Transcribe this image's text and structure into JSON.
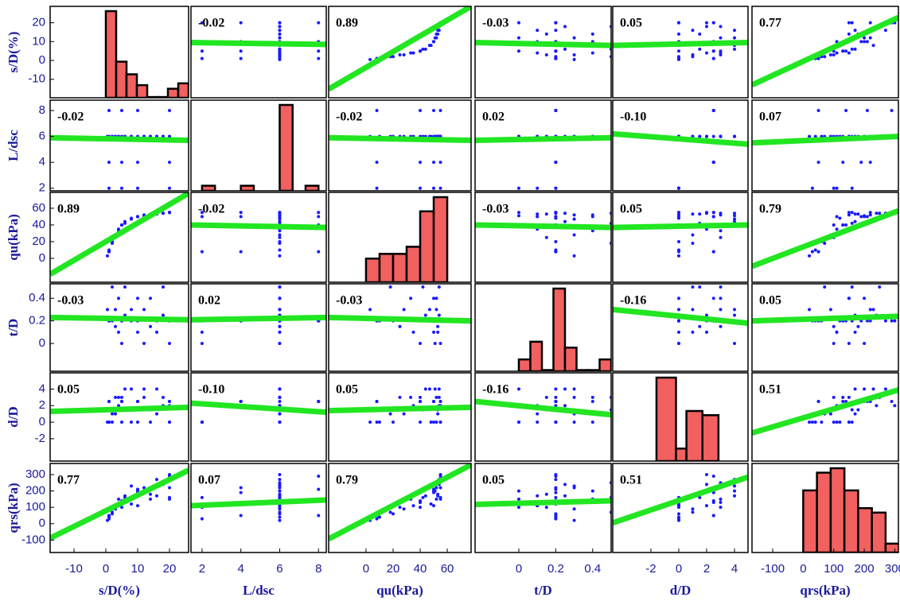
{
  "chart_data": {
    "type": "scatter_matrix",
    "point_color": "#1a1aff",
    "fit_color": "#22e622",
    "hist_color": "#f26060",
    "variables": [
      {
        "name": "s/D(%)",
        "xlim": [
          -17.5,
          26
        ],
        "ylim": [
          -19.8,
          28.7
        ],
        "xticks": [
          -10,
          0,
          10,
          20
        ],
        "yticks": [
          -10,
          0,
          10,
          20
        ],
        "bins": [
          0,
          3.25,
          6.5,
          9.75,
          13,
          16.25,
          19.5,
          22.75,
          26
        ],
        "counts": [
          24,
          10,
          6.5,
          3.5,
          0.2,
          0.2,
          2.5,
          4
        ]
      },
      {
        "name": "L/dsc",
        "xlim": [
          1.43,
          8.4
        ],
        "ylim": [
          1.8,
          8.8
        ],
        "xticks": [
          2,
          4,
          6,
          8
        ],
        "yticks": [
          2,
          4,
          6,
          8
        ],
        "bins": [
          2,
          2.667,
          3.333,
          4,
          4.667,
          5.333,
          6,
          6.667,
          7.333,
          8
        ],
        "counts": [
          2,
          0,
          0,
          2,
          0,
          0,
          34,
          0,
          2
        ]
      },
      {
        "name": "qu(kPa)",
        "xlim": [
          -27.6,
          77.6
        ],
        "ylim": [
          -28.6,
          79
        ],
        "xticks": [
          0,
          20,
          40,
          60
        ],
        "yticks": [
          0,
          20,
          40,
          60
        ],
        "bins": [
          0,
          10,
          20,
          30,
          40,
          50,
          60
        ],
        "counts": [
          5,
          6,
          6,
          7.5,
          15,
          18
        ]
      },
      {
        "name": "t/D",
        "xlim": [
          -0.237,
          0.5
        ],
        "ylim": [
          -0.246,
          0.528
        ],
        "xticks": [
          0,
          0.2,
          0.4
        ],
        "yticks": [
          0,
          0.2,
          0.4
        ],
        "bins": [
          0,
          0.0625,
          0.125,
          0.1875,
          0.25,
          0.3125,
          0.375,
          0.4375,
          0.5
        ],
        "counts": [
          2,
          5,
          0.2,
          14,
          4,
          0.2,
          0.2,
          2
        ]
      },
      {
        "name": "d/D",
        "xlim": [
          -4.74,
          4.97
        ],
        "ylim": [
          -4.7,
          5.96
        ],
        "xticks": [
          -2,
          0,
          2,
          4
        ],
        "yticks": [
          -2,
          0,
          2,
          4
        ],
        "bins": [
          -1.6,
          -0.2,
          0.55,
          1.7,
          2.85
        ],
        "counts": [
          20,
          3,
          12,
          11
        ]
      },
      {
        "name": "qrs(kPa)",
        "xlim": [
          -168,
          312
        ],
        "ylim": [
          -176,
          368
        ],
        "xticks": [
          -100,
          0,
          100,
          200,
          300
        ],
        "yticks": [
          -100,
          0,
          100,
          200,
          300
        ],
        "bins": [
          0,
          45,
          90,
          135,
          180,
          225,
          270,
          315
        ],
        "counts": [
          7,
          9,
          9.5,
          7,
          5,
          4.5,
          1
        ]
      }
    ],
    "samples": [
      [
        1,
        6,
        10,
        0.2,
        0,
        40
      ],
      [
        2,
        6,
        20,
        0.2,
        0,
        60
      ],
      [
        3,
        6,
        28,
        0.3,
        1,
        90
      ],
      [
        4,
        6,
        35,
        0.1,
        2,
        110
      ],
      [
        5,
        6,
        40,
        0.2,
        3,
        130
      ],
      [
        6,
        6,
        44,
        0.25,
        4,
        170
      ],
      [
        8,
        6,
        48,
        0.2,
        0,
        120
      ],
      [
        10,
        6,
        50,
        0.4,
        2.5,
        200
      ],
      [
        12,
        6,
        52,
        0.3,
        3,
        220
      ],
      [
        14,
        6,
        53,
        0.15,
        1.5,
        180
      ],
      [
        16,
        6,
        54,
        0.2,
        4,
        270
      ],
      [
        18,
        6,
        54,
        0.5,
        3,
        250
      ],
      [
        20,
        6,
        55,
        0.2,
        2,
        300
      ],
      [
        20,
        6,
        55,
        0,
        0,
        150
      ],
      [
        1,
        8,
        8,
        0.2,
        2.5,
        50
      ],
      [
        5,
        8,
        40,
        0.2,
        2.5,
        140
      ],
      [
        10,
        8,
        50,
        0.2,
        2.5,
        210
      ],
      [
        20,
        8,
        55,
        0.2,
        2.5,
        290
      ],
      [
        1,
        2,
        8,
        0.2,
        0,
        30
      ],
      [
        5,
        2,
        40,
        0,
        0,
        100
      ],
      [
        10,
        2,
        50,
        0.1,
        0,
        110
      ],
      [
        20,
        2,
        55,
        0.2,
        0,
        160
      ],
      [
        1,
        4,
        8,
        0.2,
        2.5,
        50
      ],
      [
        5,
        4,
        40,
        0.2,
        2.5,
        130
      ],
      [
        10,
        4,
        50,
        0.2,
        2.5,
        190
      ],
      [
        20,
        4,
        55,
        0.2,
        2.5,
        220
      ],
      [
        2,
        6,
        18,
        0.5,
        1,
        70
      ],
      [
        6,
        6,
        42,
        0.5,
        1.5,
        160
      ],
      [
        12,
        6,
        51,
        0,
        4,
        200
      ],
      [
        16,
        6,
        53,
        0.1,
        1,
        170
      ],
      [
        3,
        6,
        25,
        0.15,
        3,
        100
      ],
      [
        8,
        6,
        47,
        0.3,
        4,
        230
      ],
      [
        14,
        6,
        52,
        0.4,
        0,
        150
      ],
      [
        18,
        6,
        54,
        0.25,
        2,
        240
      ],
      [
        0.5,
        6,
        3,
        0.3,
        0,
        20
      ],
      [
        4,
        6,
        33,
        0.4,
        3,
        150
      ]
    ],
    "correlations": [
      [
        null,
        -0.02,
        0.89,
        -0.03,
        0.05,
        0.77
      ],
      [
        -0.02,
        null,
        -0.02,
        0.02,
        -0.1,
        0.07
      ],
      [
        0.89,
        -0.02,
        null,
        -0.03,
        0.05,
        0.79
      ],
      [
        -0.03,
        0.02,
        -0.03,
        null,
        -0.16,
        0.05
      ],
      [
        0.05,
        -0.1,
        0.05,
        -0.16,
        null,
        0.51
      ],
      [
        0.77,
        0.07,
        0.79,
        0.05,
        0.51,
        null
      ]
    ],
    "correlation_labels": [
      [
        null,
        "-0.02",
        "0.89",
        "-0.03",
        "0.05",
        "0.77"
      ],
      [
        "-0.02",
        null,
        "-0.02",
        "0.02",
        "-0.10",
        "0.07"
      ],
      [
        "0.89",
        "-0.02",
        null,
        "-0.03",
        "0.05",
        "0.79"
      ],
      [
        "-0.03",
        "0.02",
        "-0.03",
        null,
        "-0.16",
        "0.05"
      ],
      [
        "0.05",
        "-0.10",
        "0.05",
        "-0.16",
        null,
        "0.51"
      ],
      [
        "0.77",
        "0.07",
        "0.79",
        "0.05",
        "0.51",
        null
      ]
    ],
    "fits": [
      [
        null,
        [
          9.5,
          8.5
        ],
        [
          -15.2,
          28.7
        ],
        [
          9.5,
          8
        ],
        [
          8,
          9.5
        ],
        [
          -13,
          22.8
        ]
      ],
      [
        [
          5.9,
          5.7
        ],
        null,
        [
          5.9,
          5.7
        ],
        [
          5.7,
          5.9
        ],
        [
          6.2,
          5.4
        ],
        [
          5.5,
          6
        ]
      ],
      [
        [
          -19,
          78
        ],
        [
          40,
          37
        ],
        null,
        [
          40,
          37
        ],
        [
          37,
          40
        ],
        [
          -9.5,
          57
        ]
      ],
      [
        [
          0.23,
          0.21
        ],
        [
          0.21,
          0.23
        ],
        [
          0.23,
          0.2
        ],
        null,
        [
          0.3,
          0.18
        ],
        [
          0.2,
          0.24
        ]
      ],
      [
        [
          1.3,
          1.8
        ],
        [
          2.3,
          1.2
        ],
        [
          1.4,
          1.8
        ],
        [
          2.5,
          0.9
        ],
        null,
        [
          -1.3,
          3.9
        ]
      ],
      [
        [
          -88,
          327
        ],
        [
          110,
          145
        ],
        [
          -93,
          360
        ],
        [
          118,
          140
        ],
        [
          5,
          285
        ],
        null
      ]
    ]
  }
}
